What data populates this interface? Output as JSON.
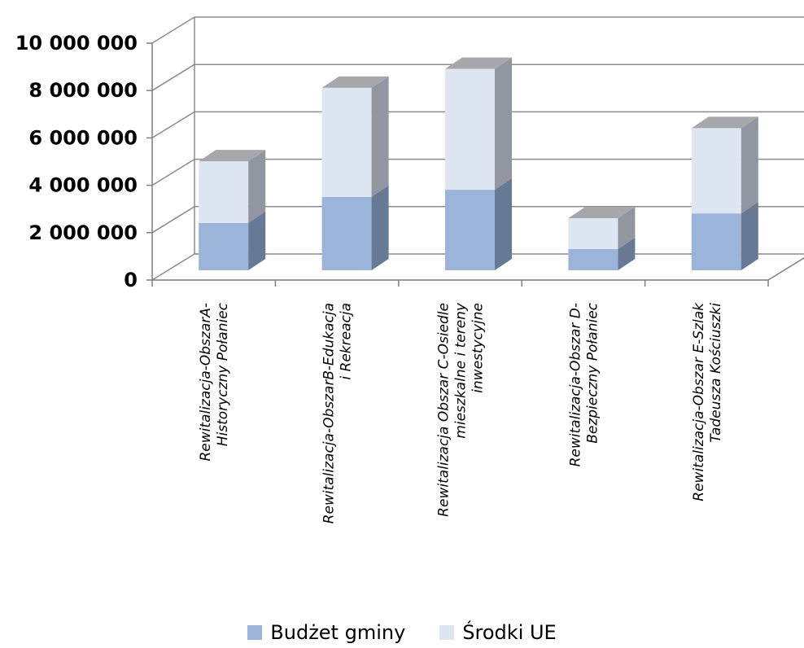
{
  "chart_data": {
    "type": "bar",
    "stacked": true,
    "three_d": true,
    "categories": [
      [
        "Rewitalizacja-ObszarA-",
        "Historyczny Połaniec"
      ],
      [
        "Rewitalizacja-ObszarB-Edukacja",
        "i Rekreacja"
      ],
      [
        "Rewitalizacja Obszar C-Osiedle",
        "mieszkalne i tereny",
        "inwestycyjne"
      ],
      [
        "Rewitalizacja-Obszar D-",
        "Bezpieczny Połaniec"
      ],
      [
        "Rewitalizacja-Obszar E-Szlak",
        "Tadeusza Kościuszki"
      ]
    ],
    "series": [
      {
        "name": "Budżet gminy",
        "values": [
          2000000,
          3100000,
          3400000,
          900000,
          2400000
        ]
      },
      {
        "name": "Środki UE",
        "values": [
          2600000,
          4600000,
          5100000,
          1300000,
          3600000
        ]
      }
    ],
    "ylim": [
      0,
      10000000
    ],
    "yticks": [
      0,
      2000000,
      4000000,
      6000000,
      8000000,
      10000000
    ],
    "ytick_labels": [
      "0",
      "2 000 000",
      "4 000 000",
      "6 000 000",
      "8 000 000",
      "10 000 000"
    ],
    "grid": true,
    "legend_position": "bottom",
    "colors": {
      "budzet_front": "#9AB4DA",
      "budzet_side": "#667A96",
      "ue_front": "#DDE6F1",
      "ue_side": "#9196A0",
      "ue_top": "#A6A7AB",
      "grid": "#8C8C8C",
      "axis": "#7F7F7F"
    }
  }
}
